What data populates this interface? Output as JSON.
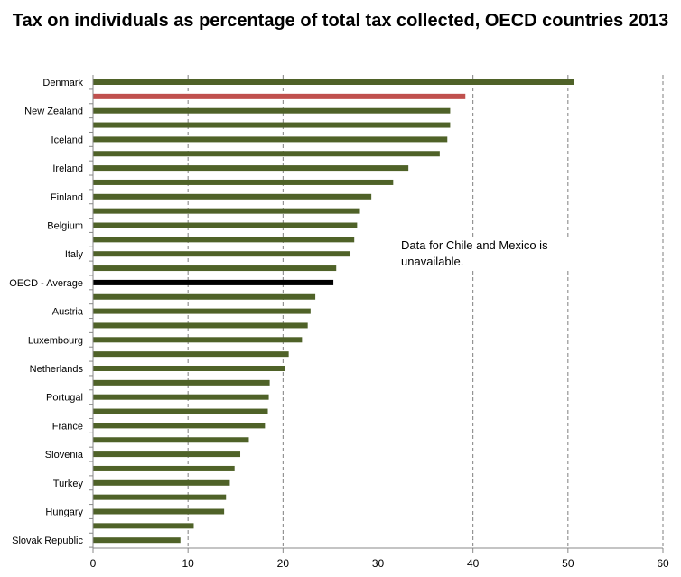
{
  "chart_data": {
    "type": "bar",
    "orientation": "horizontal",
    "title": "Tax on individuals as percentage of total tax collected, OECD countries 2013",
    "xlabel": "",
    "ylabel": "",
    "xlim": [
      0,
      60
    ],
    "xticks": [
      0,
      10,
      20,
      30,
      40,
      50,
      60
    ],
    "grid": "vertical dashed",
    "legend": "none",
    "annotation": "Data for Chile and Mexico is unavailable.",
    "colors": {
      "default": "#4f6228",
      "highlight": "#c0504d",
      "average": "#000000"
    },
    "categories": [
      "Denmark",
      "",
      "New Zealand",
      "",
      "Iceland",
      "",
      "Ireland",
      "",
      "Finland",
      "",
      "Belgium",
      "",
      "Italy",
      "",
      "OECD - Average",
      "",
      "Austria",
      "",
      "Luxembourg",
      "",
      "Netherlands",
      "",
      "Portugal",
      "",
      "France",
      "",
      "Slovenia",
      "",
      "Turkey",
      "",
      "Hungary",
      "",
      "Slovak Republic"
    ],
    "values": [
      50.6,
      39.2,
      37.6,
      37.6,
      37.3,
      36.5,
      33.2,
      31.6,
      29.3,
      28.1,
      27.8,
      27.5,
      27.1,
      25.6,
      25.3,
      23.4,
      22.9,
      22.6,
      22.0,
      20.6,
      20.2,
      18.6,
      18.5,
      18.4,
      18.1,
      16.4,
      15.5,
      14.9,
      14.4,
      14.0,
      13.8,
      10.6,
      9.2
    ],
    "highlight_index": 1,
    "average_index": 14
  }
}
